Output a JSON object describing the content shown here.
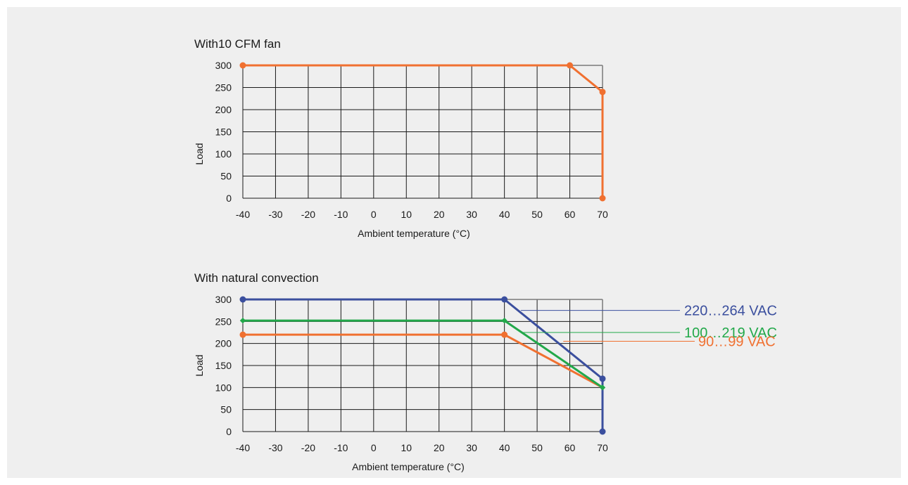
{
  "colors": {
    "background": "#efefef",
    "grid": "#1a1a1a",
    "blue": "#3b4f9e",
    "green": "#22a84a",
    "orange": "#f07030"
  },
  "chart_data": [
    {
      "type": "line",
      "title": "With10 CFM fan",
      "xlabel": "Ambient temperature (°C)",
      "ylabel": "Load",
      "xlim": [
        -40,
        70
      ],
      "ylim": [
        0,
        300
      ],
      "x_ticks": [
        -40,
        -30,
        -20,
        -10,
        0,
        10,
        20,
        30,
        40,
        50,
        60,
        70
      ],
      "y_ticks": [
        0,
        50,
        100,
        150,
        200,
        250,
        300
      ],
      "grid": true,
      "series": [
        {
          "name": "",
          "color": "#f07030",
          "points": [
            [
              -40,
              300
            ],
            [
              60,
              300
            ],
            [
              70,
              240
            ],
            [
              70,
              0
            ]
          ],
          "marker_points": [
            [
              -40,
              300
            ],
            [
              60,
              300
            ],
            [
              70,
              240
            ],
            [
              70,
              0
            ]
          ],
          "marker": "circle"
        }
      ]
    },
    {
      "type": "line",
      "title": "With natural convection",
      "xlabel": "Ambient temperature (°C)",
      "ylabel": "Load",
      "xlim": [
        -40,
        70
      ],
      "ylim": [
        0,
        300
      ],
      "x_ticks": [
        -40,
        -30,
        -20,
        -10,
        0,
        10,
        20,
        30,
        40,
        50,
        60,
        70
      ],
      "y_ticks": [
        0,
        50,
        100,
        150,
        200,
        250,
        300
      ],
      "grid": true,
      "series": [
        {
          "name": "220…264 VAC",
          "color": "#3b4f9e",
          "points": [
            [
              -40,
              300
            ],
            [
              40,
              300
            ],
            [
              70,
              120
            ],
            [
              70,
              0
            ]
          ],
          "marker_points": [
            [
              -40,
              300
            ],
            [
              40,
              300
            ],
            [
              70,
              120
            ],
            [
              70,
              0
            ]
          ],
          "marker": "circle",
          "label_anchor": [
            45,
            275
          ]
        },
        {
          "name": "100…219 VAC",
          "color": "#22a84a",
          "points": [
            [
              -40,
              252
            ],
            [
              40,
              252
            ],
            [
              70,
              100
            ]
          ],
          "marker_points": [
            [
              -40,
              252
            ],
            [
              40,
              252
            ],
            [
              70,
              100
            ]
          ],
          "marker": "diamond",
          "label_anchor": [
            45,
            225
          ]
        },
        {
          "name": "90…99 VAC",
          "color": "#f07030",
          "points": [
            [
              -40,
              220
            ],
            [
              40,
              220
            ],
            [
              70,
              100
            ]
          ],
          "marker_points": [
            [
              -40,
              220
            ],
            [
              40,
              220
            ]
          ],
          "marker": "circle",
          "label_anchor": [
            58,
            205
          ]
        }
      ]
    }
  ]
}
